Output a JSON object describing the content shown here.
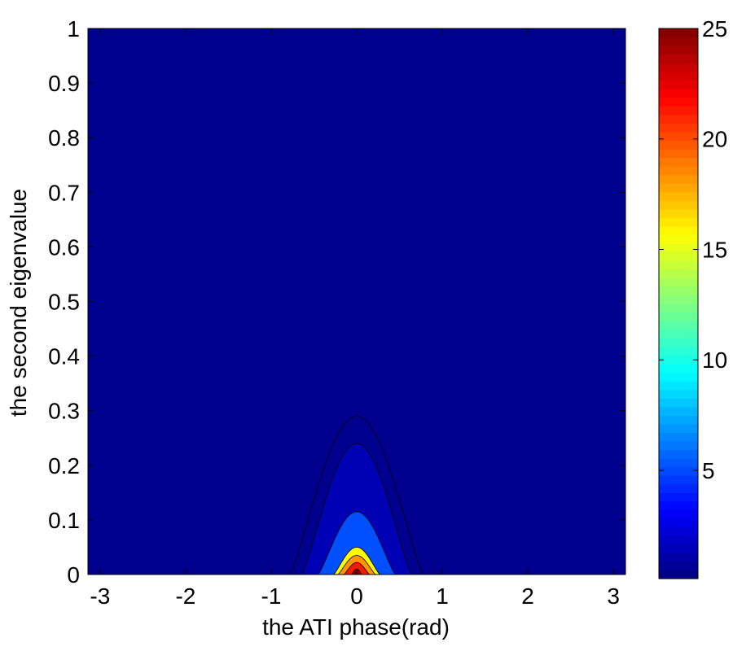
{
  "chart_data": {
    "type": "contourf",
    "title": "",
    "xlabel": "the ATI phase(rad)",
    "ylabel": "the second eigenvalue",
    "xlim": [
      -3.1416,
      3.1416
    ],
    "ylim": [
      0,
      1
    ],
    "x_ticks": [
      -3,
      -2,
      -1,
      0,
      1,
      2,
      3
    ],
    "x_tick_labels": [
      "-3",
      "-2",
      "-1",
      "0",
      "1",
      "2",
      "3"
    ],
    "y_ticks": [
      0,
      0.1,
      0.2,
      0.3,
      0.4,
      0.5,
      0.6,
      0.7,
      0.8,
      0.9,
      1
    ],
    "y_tick_labels": [
      "0",
      "0.1",
      "0.2",
      "0.3",
      "0.4",
      "0.5",
      "0.6",
      "0.7",
      "0.8",
      "0.9",
      "1"
    ],
    "grid": false,
    "colormap": "jet",
    "background_color": "#00008f",
    "colorbar": {
      "min": 0.1,
      "max": 25,
      "ticks": [
        5,
        10,
        15,
        20,
        25
      ],
      "tick_labels": [
        "5",
        "10",
        "15",
        "20",
        "25"
      ]
    },
    "contour_regions": [
      {
        "level": 0.3,
        "color": "#00008f",
        "phase_halfwidth": 0.78,
        "eigenvalue_peak": 0.29
      },
      {
        "level": 1.0,
        "color": "#0000b4",
        "phase_halfwidth": 0.64,
        "eigenvalue_peak": 0.24
      },
      {
        "level": 5.0,
        "color": "#0050ff",
        "phase_halfwidth": 0.45,
        "eigenvalue_peak": 0.115
      },
      {
        "level": 10.0,
        "color": "#2bd4ff",
        "phase_halfwidth": 0.33,
        "eigenvalue_peak": 0.065
      },
      {
        "level": 13.0,
        "color": "#ffff00",
        "phase_halfwidth": 0.27,
        "eigenvalue_peak": 0.05
      },
      {
        "level": 17.0,
        "color": "#ff9800",
        "phase_halfwidth": 0.22,
        "eigenvalue_peak": 0.035
      },
      {
        "level": 21.0,
        "color": "#ee1c00",
        "phase_halfwidth": 0.15,
        "eigenvalue_peak": 0.022
      },
      {
        "level": 24.0,
        "color": "#8a0000",
        "phase_halfwidth": 0.06,
        "eigenvalue_peak": 0.01
      }
    ]
  }
}
